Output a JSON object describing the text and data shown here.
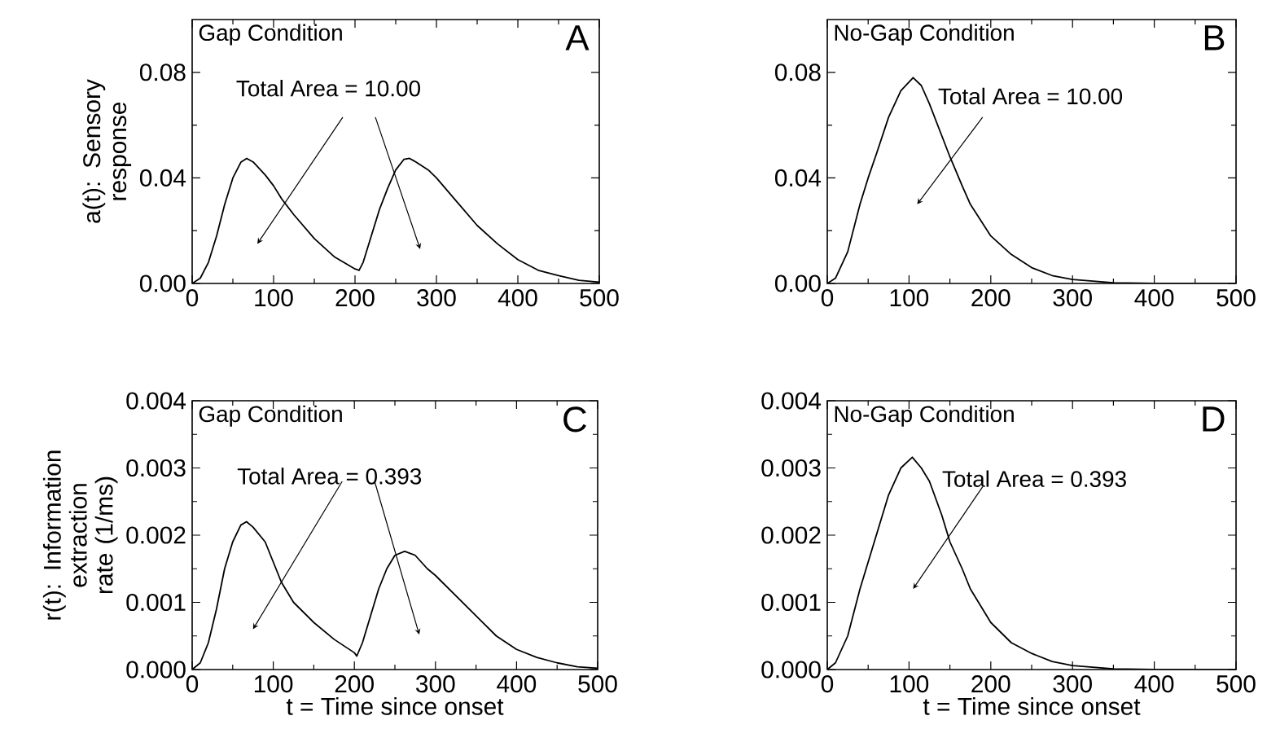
{
  "chart_data": [
    {
      "type": "line",
      "ylabel": "a(t): Sensory response",
      "annotations": [
        "Gap Condition",
        "A",
        "Total Area = 10.00"
      ],
      "xlim": [
        0,
        500
      ],
      "ylim": [
        0,
        0.1
      ],
      "xticks": [
        0,
        {
          "value": 50,
          "label": null
        },
        100,
        {
          "value": 150,
          "label": null
        },
        200,
        {
          "value": 250,
          "label": null
        },
        300,
        {
          "value": 350,
          "label": null
        },
        400,
        {
          "value": 450,
          "label": null
        },
        500
      ],
      "yticks": [
        {
          "value": 0,
          "label": "0.00"
        },
        {
          "value": 0.02,
          "label": null
        },
        0.04,
        {
          "value": 0.06,
          "label": null
        },
        0.08
      ],
      "series": [
        {
          "color": "#000000",
          "x": [
            0,
            10,
            20,
            30,
            40,
            50,
            60,
            67,
            75,
            90,
            100,
            110,
            125,
            150,
            175,
            200,
            205,
            210,
            220,
            230,
            240,
            250,
            260,
            267,
            275,
            290,
            300,
            325,
            350,
            375,
            400,
            425,
            450,
            475,
            500
          ],
          "values": [
            0,
            0.002,
            0.008,
            0.018,
            0.03,
            0.04,
            0.046,
            0.0474,
            0.046,
            0.041,
            0.037,
            0.032,
            0.026,
            0.017,
            0.01,
            0.0055,
            0.005,
            0.008,
            0.018,
            0.028,
            0.036,
            0.043,
            0.047,
            0.0474,
            0.046,
            0.043,
            0.04,
            0.031,
            0.022,
            0.015,
            0.009,
            0.005,
            0.003,
            0.0012,
            0.0005
          ]
        }
      ]
    },
    {
      "type": "line",
      "annotations": [
        "No-Gap Condition",
        "B",
        "Total Area = 10.00"
      ],
      "xlim": [
        0,
        500
      ],
      "ylim": [
        0,
        0.1
      ],
      "xticks": [
        0,
        {
          "value": 50,
          "label": null
        },
        100,
        {
          "value": 150,
          "label": null
        },
        200,
        {
          "value": 250,
          "label": null
        },
        300,
        {
          "value": 350,
          "label": null
        },
        400,
        {
          "value": 450,
          "label": null
        },
        500
      ],
      "yticks": [
        {
          "value": 0,
          "label": "0.00"
        },
        {
          "value": 0.02,
          "label": null
        },
        0.04,
        {
          "value": 0.06,
          "label": null
        },
        0.08
      ],
      "series": [
        {
          "color": "#000000",
          "x": [
            0,
            10,
            25,
            40,
            50,
            60,
            75,
            90,
            105,
            115,
            125,
            140,
            150,
            165,
            175,
            200,
            225,
            250,
            275,
            300,
            350,
            400,
            450,
            500
          ],
          "values": [
            0,
            0.002,
            0.012,
            0.03,
            0.04,
            0.049,
            0.063,
            0.073,
            0.078,
            0.075,
            0.068,
            0.056,
            0.048,
            0.037,
            0.03,
            0.018,
            0.011,
            0.006,
            0.003,
            0.0015,
            0.0003,
            0,
            0,
            0
          ]
        }
      ]
    },
    {
      "type": "line",
      "ylabel": "r(t): Information extraction rate (1/ms)",
      "xlabel": "t = Time since onset",
      "annotations": [
        "Gap Condition",
        "C",
        "Total Area = 0.393"
      ],
      "xlim": [
        0,
        500
      ],
      "ylim": [
        0,
        0.004
      ],
      "xticks": [
        0,
        {
          "value": 50,
          "label": null
        },
        100,
        {
          "value": 150,
          "label": null
        },
        200,
        {
          "value": 250,
          "label": null
        },
        300,
        {
          "value": 350,
          "label": null
        },
        400,
        {
          "value": 450,
          "label": null
        },
        500
      ],
      "yticks": [
        {
          "value": 0,
          "label": "0.000"
        },
        {
          "value": 0.0005,
          "label": null
        },
        0.001,
        {
          "value": 0.0015,
          "label": null
        },
        0.002,
        {
          "value": 0.0025,
          "label": null
        },
        0.003,
        {
          "value": 0.0035,
          "label": null
        },
        0.004
      ],
      "series": [
        {
          "color": "#000000",
          "x": [
            0,
            10,
            20,
            30,
            40,
            50,
            60,
            67,
            75,
            90,
            100,
            110,
            125,
            150,
            175,
            200,
            203,
            210,
            220,
            230,
            240,
            250,
            262,
            275,
            290,
            300,
            325,
            350,
            375,
            400,
            425,
            450,
            475,
            500
          ],
          "values": [
            0,
            0.0001,
            0.0004,
            0.0009,
            0.0015,
            0.0019,
            0.00215,
            0.0022,
            0.00212,
            0.0019,
            0.0016,
            0.0013,
            0.001,
            0.0007,
            0.00045,
            0.00025,
            0.0002,
            0.0004,
            0.0008,
            0.0012,
            0.0015,
            0.0017,
            0.00176,
            0.0017,
            0.0015,
            0.0014,
            0.0011,
            0.0008,
            0.0005,
            0.0003,
            0.00018,
            0.0001,
            4e-05,
            2e-05
          ]
        }
      ]
    },
    {
      "type": "line",
      "xlabel": "t = Time since onset",
      "annotations": [
        "No-Gap Condition",
        "D",
        "Total Area = 0.393"
      ],
      "xlim": [
        0,
        500
      ],
      "ylim": [
        0,
        0.004
      ],
      "xticks": [
        0,
        {
          "value": 50,
          "label": null
        },
        100,
        {
          "value": 150,
          "label": null
        },
        200,
        {
          "value": 250,
          "label": null
        },
        300,
        {
          "value": 350,
          "label": null
        },
        400,
        {
          "value": 450,
          "label": null
        },
        500
      ],
      "yticks": [
        {
          "value": 0,
          "label": "0.000"
        },
        {
          "value": 0.0005,
          "label": null
        },
        0.001,
        {
          "value": 0.0015,
          "label": null
        },
        0.002,
        {
          "value": 0.0025,
          "label": null
        },
        0.003,
        {
          "value": 0.0035,
          "label": null
        },
        0.004
      ],
      "series": [
        {
          "color": "#000000",
          "x": [
            0,
            10,
            25,
            40,
            50,
            60,
            75,
            90,
            104,
            115,
            125,
            140,
            150,
            165,
            175,
            200,
            225,
            250,
            275,
            300,
            350,
            400,
            450,
            500
          ],
          "values": [
            0,
            0.0001,
            0.0005,
            0.0012,
            0.0016,
            0.002,
            0.0026,
            0.003,
            0.00316,
            0.003,
            0.0028,
            0.0023,
            0.0019,
            0.0015,
            0.0012,
            0.0007,
            0.0004,
            0.00024,
            0.00012,
            6e-05,
            1e-05,
            0,
            0,
            0
          ]
        }
      ]
    }
  ]
}
